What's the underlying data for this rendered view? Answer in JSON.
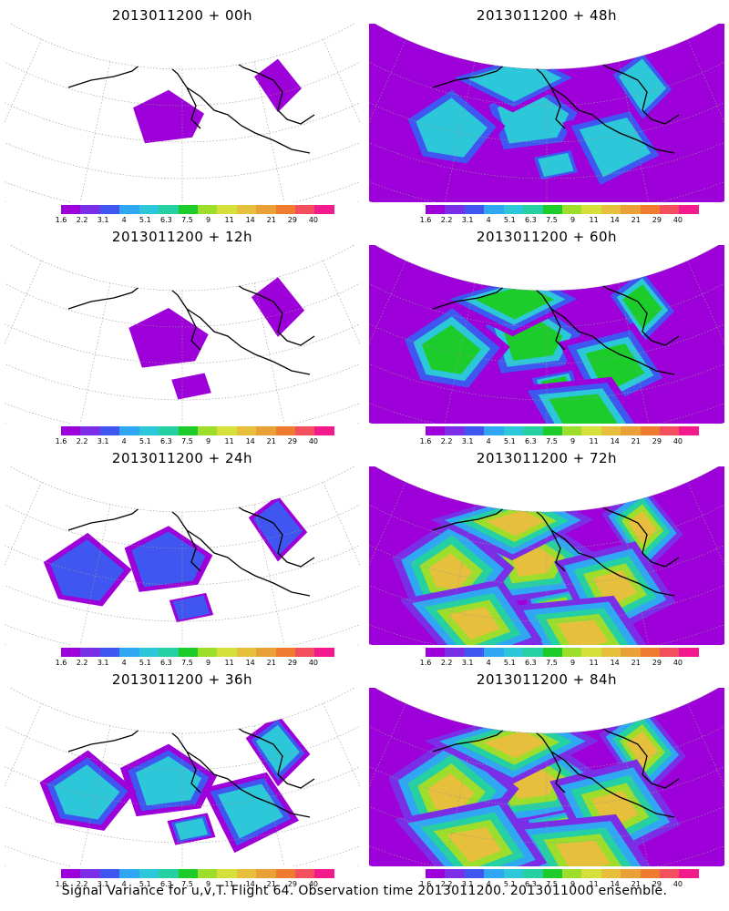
{
  "panels": [
    {
      "title": "2013011200 + 00h",
      "level": 0
    },
    {
      "title": "2013011200 + 48h",
      "level": 4
    },
    {
      "title": "2013011200 + 12h",
      "level": 1
    },
    {
      "title": "2013011200 + 60h",
      "level": 5
    },
    {
      "title": "2013011200 + 24h",
      "level": 2
    },
    {
      "title": "2013011200 + 72h",
      "level": 6
    },
    {
      "title": "2013011200 + 36h",
      "level": 3
    },
    {
      "title": "2013011200 + 84h",
      "level": 7
    }
  ],
  "legend": {
    "colors": [
      "#9d00d8",
      "#7a2fe6",
      "#3f57f0",
      "#2fa7f2",
      "#2cc7d8",
      "#25d0a2",
      "#1ccc2a",
      "#9dde2c",
      "#d6e03a",
      "#e6bf3c",
      "#e9a036",
      "#ee7b2f",
      "#f24e5e",
      "#f21a8c"
    ],
    "labels": [
      "1.6",
      "2.2",
      "3.1",
      "4",
      "5.1",
      "6.3",
      "7.5",
      "9",
      "11",
      "14",
      "21",
      "29",
      "40"
    ]
  },
  "footer": "Signal Variance for u,v,T. Flight 64. Observation time 2013011200. 2013011000 ensemble."
}
